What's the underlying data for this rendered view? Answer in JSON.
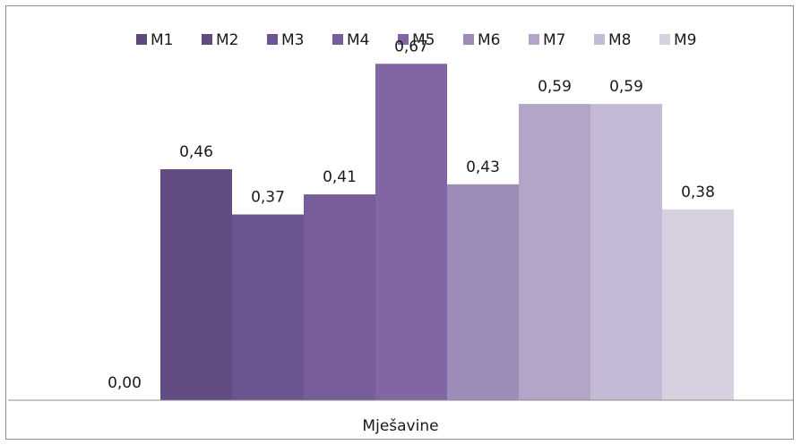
{
  "chart_data": {
    "type": "bar",
    "categories": [
      "Mješavine"
    ],
    "xlabel": "Mješavine",
    "ylabel": "",
    "ylim": [
      0,
      0.74
    ],
    "grid": false,
    "legend_position": "top",
    "series": [
      {
        "name": "M1",
        "values": [
          0.0
        ],
        "label": "0,00",
        "color": "#5e4a7a"
      },
      {
        "name": "M2",
        "values": [
          0.46
        ],
        "label": "0,46",
        "color": "#614b80"
      },
      {
        "name": "M3",
        "values": [
          0.37
        ],
        "label": "0,37",
        "color": "#6b5490"
      },
      {
        "name": "M4",
        "values": [
          0.41
        ],
        "label": "0,41",
        "color": "#775e9b"
      },
      {
        "name": "M5",
        "values": [
          0.67
        ],
        "label": "0,67",
        "color": "#8266a3"
      },
      {
        "name": "M6",
        "values": [
          0.43
        ],
        "label": "0,43",
        "color": "#9d8bb8"
      },
      {
        "name": "M7",
        "values": [
          0.59
        ],
        "label": "0,59",
        "color": "#b3a5c8"
      },
      {
        "name": "M8",
        "values": [
          0.59
        ],
        "label": "0,59",
        "color": "#c5bad6"
      },
      {
        "name": "M9",
        "values": [
          0.38
        ],
        "label": "0,38",
        "color": "#d6d0e1"
      }
    ]
  }
}
